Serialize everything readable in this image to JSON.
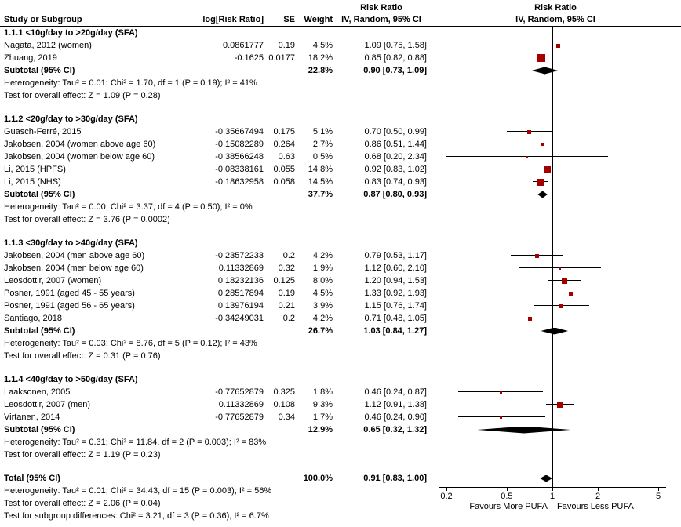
{
  "chart_data": {
    "type": "forest",
    "effect_measure": "Risk Ratio",
    "model": "IV, Random, 95% CI",
    "header": {
      "risk_ratio": "Risk Ratio",
      "study": "Study or Subgroup",
      "log_rr": "log[Risk Ratio]",
      "se": "SE",
      "weight": "Weight",
      "ci": "IV, Random, 95% CI"
    },
    "colors": {
      "marker": "#a40000",
      "pooled": "#000000",
      "ci_line": "#000000"
    },
    "axis": {
      "scale": "log",
      "ticks": [
        0.2,
        0.5,
        1,
        2,
        5
      ],
      "left_label": "Favours More PUFA",
      "right_label": "Favours Less PUFA"
    },
    "subgroups": [
      {
        "label": "1.1.1 <10g/day to >20g/day (SFA)",
        "studies": [
          {
            "name": "Nagata, 2012 (women)",
            "log_rr": "0.0861777",
            "se": "0.19",
            "weight": "4.5%",
            "weight_pct": 4.5,
            "ci_text": "1.09 [0.75, 1.58]",
            "rr": 1.09,
            "lo": 0.75,
            "hi": 1.58
          },
          {
            "name": "Zhuang, 2019",
            "log_rr": "-0.1625",
            "se": "0.0177",
            "weight": "18.2%",
            "weight_pct": 18.2,
            "ci_text": "0.85 [0.82, 0.88]",
            "rr": 0.85,
            "lo": 0.82,
            "hi": 0.88
          }
        ],
        "subtotal": {
          "label": "Subtotal (95% CI)",
          "weight": "22.8%",
          "ci_text": "0.90 [0.73, 1.09]",
          "rr": 0.9,
          "lo": 0.73,
          "hi": 1.09
        },
        "heterogeneity": "Heterogeneity: Tau² = 0.01; Chi² = 1.70, df = 1 (P = 0.19); I² = 41%",
        "overall_effect": "Test for overall effect: Z = 1.09 (P = 0.28)"
      },
      {
        "label": "1.1.2 <20g/day to >30g/day (SFA)",
        "studies": [
          {
            "name": "Guasch-Ferré, 2015",
            "log_rr": "-0.35667494",
            "se": "0.175",
            "weight": "5.1%",
            "weight_pct": 5.1,
            "ci_text": "0.70 [0.50, 0.99]",
            "rr": 0.7,
            "lo": 0.5,
            "hi": 0.99
          },
          {
            "name": "Jakobsen, 2004 (women above age 60)",
            "log_rr": "-0.15082289",
            "se": "0.264",
            "weight": "2.7%",
            "weight_pct": 2.7,
            "ci_text": "0.86 [0.51, 1.44]",
            "rr": 0.86,
            "lo": 0.51,
            "hi": 1.44
          },
          {
            "name": "Jakobsen, 2004 (women below age 60)",
            "log_rr": "-0.38566248",
            "se": "0.63",
            "weight": "0.5%",
            "weight_pct": 0.5,
            "ci_text": "0.68 [0.20, 2.34]",
            "rr": 0.68,
            "lo": 0.2,
            "hi": 2.34
          },
          {
            "name": "Li, 2015 (HPFS)",
            "log_rr": "-0.08338161",
            "se": "0.055",
            "weight": "14.8%",
            "weight_pct": 14.8,
            "ci_text": "0.92 [0.83, 1.02]",
            "rr": 0.92,
            "lo": 0.83,
            "hi": 1.02
          },
          {
            "name": "Li, 2015 (NHS)",
            "log_rr": "-0.18632958",
            "se": "0.058",
            "weight": "14.5%",
            "weight_pct": 14.5,
            "ci_text": "0.83 [0.74, 0.93]",
            "rr": 0.83,
            "lo": 0.74,
            "hi": 0.93
          }
        ],
        "subtotal": {
          "label": "Subtotal (95% CI)",
          "weight": "37.7%",
          "ci_text": "0.87 [0.80, 0.93]",
          "rr": 0.87,
          "lo": 0.8,
          "hi": 0.93
        },
        "heterogeneity": "Heterogeneity: Tau² = 0.00; Chi² = 3.37, df = 4 (P = 0.50); I² = 0%",
        "overall_effect": "Test for overall effect: Z = 3.76 (P = 0.0002)"
      },
      {
        "label": "1.1.3 <30g/day to >40g/day (SFA)",
        "studies": [
          {
            "name": "Jakobsen, 2004 (men above age 60)",
            "log_rr": "-0.23572233",
            "se": "0.2",
            "weight": "4.2%",
            "weight_pct": 4.2,
            "ci_text": "0.79 [0.53, 1.17]",
            "rr": 0.79,
            "lo": 0.53,
            "hi": 1.17
          },
          {
            "name": "Jakobsen, 2004 (men below age 60)",
            "log_rr": "0.11332869",
            "se": "0.32",
            "weight": "1.9%",
            "weight_pct": 1.9,
            "ci_text": "1.12 [0.60, 2.10]",
            "rr": 1.12,
            "lo": 0.6,
            "hi": 2.1
          },
          {
            "name": "Leosdottir, 2007 (women)",
            "log_rr": "0.18232136",
            "se": "0.125",
            "weight": "8.0%",
            "weight_pct": 8.0,
            "ci_text": "1.20 [0.94, 1.53]",
            "rr": 1.2,
            "lo": 0.94,
            "hi": 1.53
          },
          {
            "name": "Posner, 1991 (aged 45 - 55 years)",
            "log_rr": "0.28517894",
            "se": "0.19",
            "weight": "4.5%",
            "weight_pct": 4.5,
            "ci_text": "1.33 [0.92, 1.93]",
            "rr": 1.33,
            "lo": 0.92,
            "hi": 1.93
          },
          {
            "name": "Posner, 1991 (aged 56 - 65 years)",
            "log_rr": "0.13976194",
            "se": "0.21",
            "weight": "3.9%",
            "weight_pct": 3.9,
            "ci_text": "1.15 [0.76, 1.74]",
            "rr": 1.15,
            "lo": 0.76,
            "hi": 1.74
          },
          {
            "name": "Santiago, 2018",
            "log_rr": "-0.34249031",
            "se": "0.2",
            "weight": "4.2%",
            "weight_pct": 4.2,
            "ci_text": "0.71 [0.48, 1.05]",
            "rr": 0.71,
            "lo": 0.48,
            "hi": 1.05
          }
        ],
        "subtotal": {
          "label": "Subtotal (95% CI)",
          "weight": "26.7%",
          "ci_text": "1.03 [0.84, 1.27]",
          "rr": 1.03,
          "lo": 0.84,
          "hi": 1.27
        },
        "heterogeneity": "Heterogeneity: Tau² = 0.03; Chi² = 8.76, df = 5 (P = 0.12); I² = 43%",
        "overall_effect": "Test for overall effect: Z = 0.31 (P = 0.76)"
      },
      {
        "label": "1.1.4 <40g/day to >50g/day (SFA)",
        "studies": [
          {
            "name": "Laaksonen, 2005",
            "log_rr": "-0.77652879",
            "se": "0.325",
            "weight": "1.8%",
            "weight_pct": 1.8,
            "ci_text": "0.46 [0.24, 0.87]",
            "rr": 0.46,
            "lo": 0.24,
            "hi": 0.87
          },
          {
            "name": "Leosdottir, 2007 (men)",
            "log_rr": "0.11332869",
            "se": "0.108",
            "weight": "9.3%",
            "weight_pct": 9.3,
            "ci_text": "1.12 [0.91, 1.38]",
            "rr": 1.12,
            "lo": 0.91,
            "hi": 1.38
          },
          {
            "name": "Virtanen, 2014",
            "log_rr": "-0.77652879",
            "se": "0.34",
            "weight": "1.7%",
            "weight_pct": 1.7,
            "ci_text": "0.46 [0.24, 0.90]",
            "rr": 0.46,
            "lo": 0.24,
            "hi": 0.9
          }
        ],
        "subtotal": {
          "label": "Subtotal (95% CI)",
          "weight": "12.9%",
          "ci_text": "0.65 [0.32, 1.32]",
          "rr": 0.65,
          "lo": 0.32,
          "hi": 1.32
        },
        "heterogeneity": "Heterogeneity: Tau² = 0.31; Chi² = 11.84, df = 2 (P = 0.003); I² = 83%",
        "overall_effect": "Test for overall effect: Z = 1.19 (P = 0.23)"
      }
    ],
    "total": {
      "label": "Total (95% CI)",
      "weight": "100.0%",
      "ci_text": "0.91 [0.83, 1.00]",
      "rr": 0.91,
      "lo": 0.83,
      "hi": 1.0
    },
    "footer_lines": [
      "Heterogeneity: Tau² = 0.01; Chi² = 34.43, df = 15 (P = 0.003); I² = 56%",
      "Test for overall effect: Z = 2.06 (P = 0.04)",
      "Test for subgroup differences: Chi² = 3.21, df = 3 (P = 0.36), I² = 6.7%"
    ]
  }
}
